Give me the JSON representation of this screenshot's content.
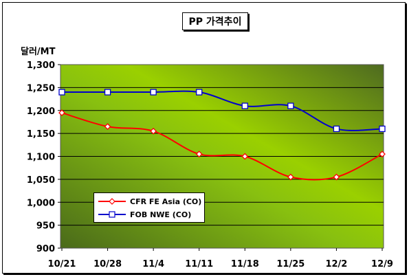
{
  "chart_data": {
    "type": "line",
    "title": "PP 가격추이",
    "ylabel": "달러/MT",
    "categories": [
      "10/21",
      "10/28",
      "11/4",
      "11/11",
      "11/18",
      "11/25",
      "12/2",
      "12/9"
    ],
    "yticks": [
      "900",
      "950",
      "1,000",
      "1,050",
      "1,100",
      "1,150",
      "1,200",
      "1,250",
      "1,300"
    ],
    "ylim": [
      900,
      1300
    ],
    "grid": true,
    "legend_position": "bottom-left",
    "series": [
      {
        "name": "CFR FE Asia (CO)",
        "values": [
          1195,
          1165,
          1155,
          1105,
          1100,
          1055,
          1055,
          1105
        ],
        "color": "#ff0000",
        "marker": "diamond"
      },
      {
        "name": "FOB NWE (CO)",
        "values": [
          1240,
          1240,
          1240,
          1240,
          1210,
          1210,
          1160,
          1160
        ],
        "color": "#0000cc",
        "marker": "square"
      }
    ]
  }
}
